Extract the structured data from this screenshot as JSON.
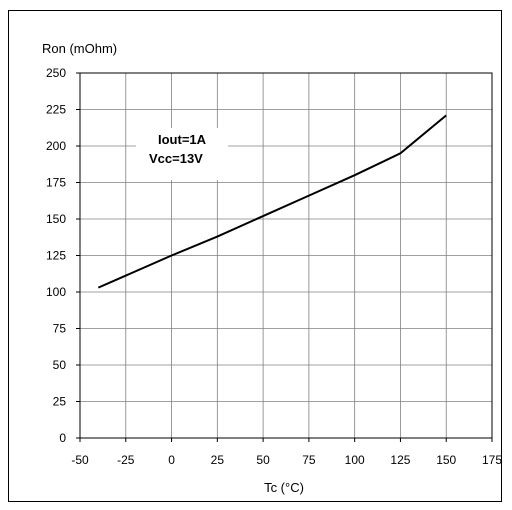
{
  "chart_data": {
    "type": "line",
    "title": "",
    "xlabel": "Tc (°C)",
    "ylabel": "Ron (mOhm)",
    "xlim": [
      -50,
      175
    ],
    "ylim": [
      0,
      250
    ],
    "x_ticks": [
      -50,
      -25,
      0,
      25,
      50,
      75,
      100,
      125,
      150,
      175
    ],
    "y_ticks": [
      0,
      25,
      50,
      75,
      100,
      125,
      150,
      175,
      200,
      225,
      250
    ],
    "grid": true,
    "series": [
      {
        "x": [
          -40,
          0,
          25,
          50,
          75,
          100,
          125,
          150
        ],
        "y": [
          103,
          125,
          138,
          152,
          166,
          180,
          195,
          221
        ]
      }
    ],
    "annotations": [
      "Iout=1A",
      "Vcc=13V"
    ],
    "colors": {
      "line": "#000000",
      "grid": "#808080"
    }
  }
}
